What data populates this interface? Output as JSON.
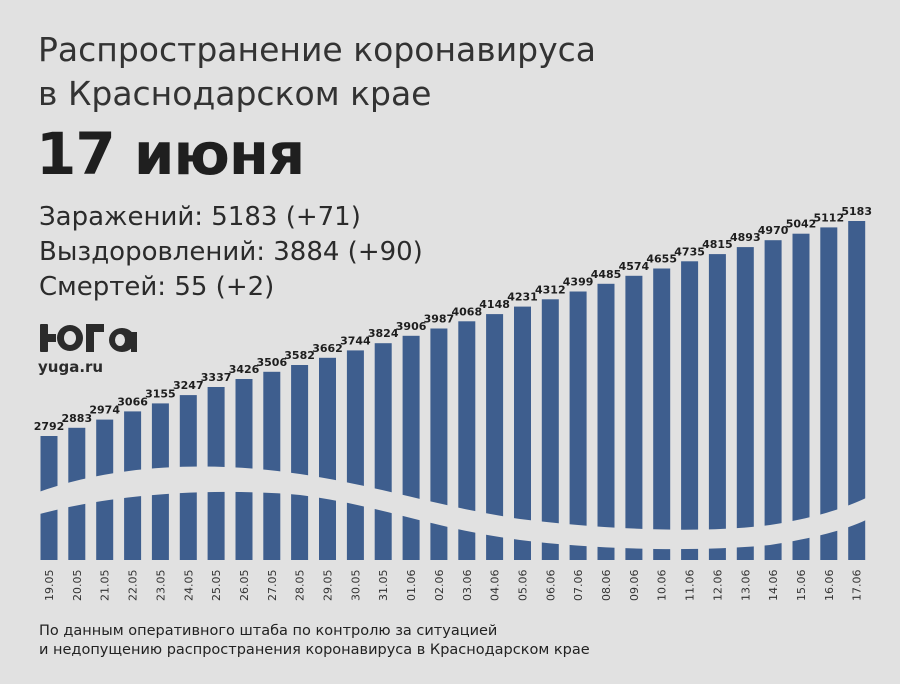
{
  "header": {
    "title_line1": "Распространение коронавируса",
    "title_line2": "в Краснодарском крае",
    "date": "17 июня"
  },
  "stats": {
    "infections": "Заражений: 5183 (+71)",
    "recoveries": "Выздоровлений: 3884 (+90)",
    "deaths": "Смертей: 55 (+2)"
  },
  "logo": {
    "site": "yuga.ru"
  },
  "source": {
    "line1": "По данным оперативного штаба по контролю за ситуацией",
    "line2": "и недопущению распространения коронавируса в Краснодарском крае"
  },
  "colors": {
    "bar": "#3e5e8e",
    "background": "#e1e1e1",
    "wave": "#e1e1e1"
  },
  "chart_data": {
    "type": "bar",
    "title": "",
    "xlabel": "",
    "ylabel": "",
    "categories": [
      "19.05",
      "20.05",
      "21.05",
      "22.05",
      "23.05",
      "24.05",
      "25.05",
      "26.05",
      "27.05",
      "28.05",
      "29.05",
      "30.05",
      "31.05",
      "01.06",
      "02.06",
      "03.06",
      "04.06",
      "05.06",
      "06.06",
      "07.06",
      "08.06",
      "09.06",
      "10.06",
      "11.06",
      "12.06",
      "13.06",
      "14.06",
      "15.06",
      "16.06",
      "17.06"
    ],
    "series": [
      {
        "values": [
          2792,
          2883,
          2974,
          3066,
          3155,
          3247,
          3337,
          3426,
          3506,
          3582,
          3662,
          3744,
          3824,
          3906,
          3987,
          4068,
          4148,
          4231,
          4312,
          4399,
          4485,
          4574,
          4655,
          4735,
          4815,
          4893,
          4970,
          5042,
          5112,
          5183
        ]
      }
    ],
    "data_labels": [
      "2792",
      "2883",
      "2974",
      "3066",
      "3155",
      "3247",
      "3337",
      "3426",
      "3506",
      "3582",
      "3662",
      "3744",
      "3824",
      "3906",
      "3987",
      "4068",
      "4148",
      "4231",
      "4312",
      "4399",
      "4485",
      "4574",
      "4655",
      "4735",
      "4815",
      "4893",
      "4970",
      "5042",
      "5112",
      "5183"
    ],
    "grid": false,
    "legend": "none"
  }
}
